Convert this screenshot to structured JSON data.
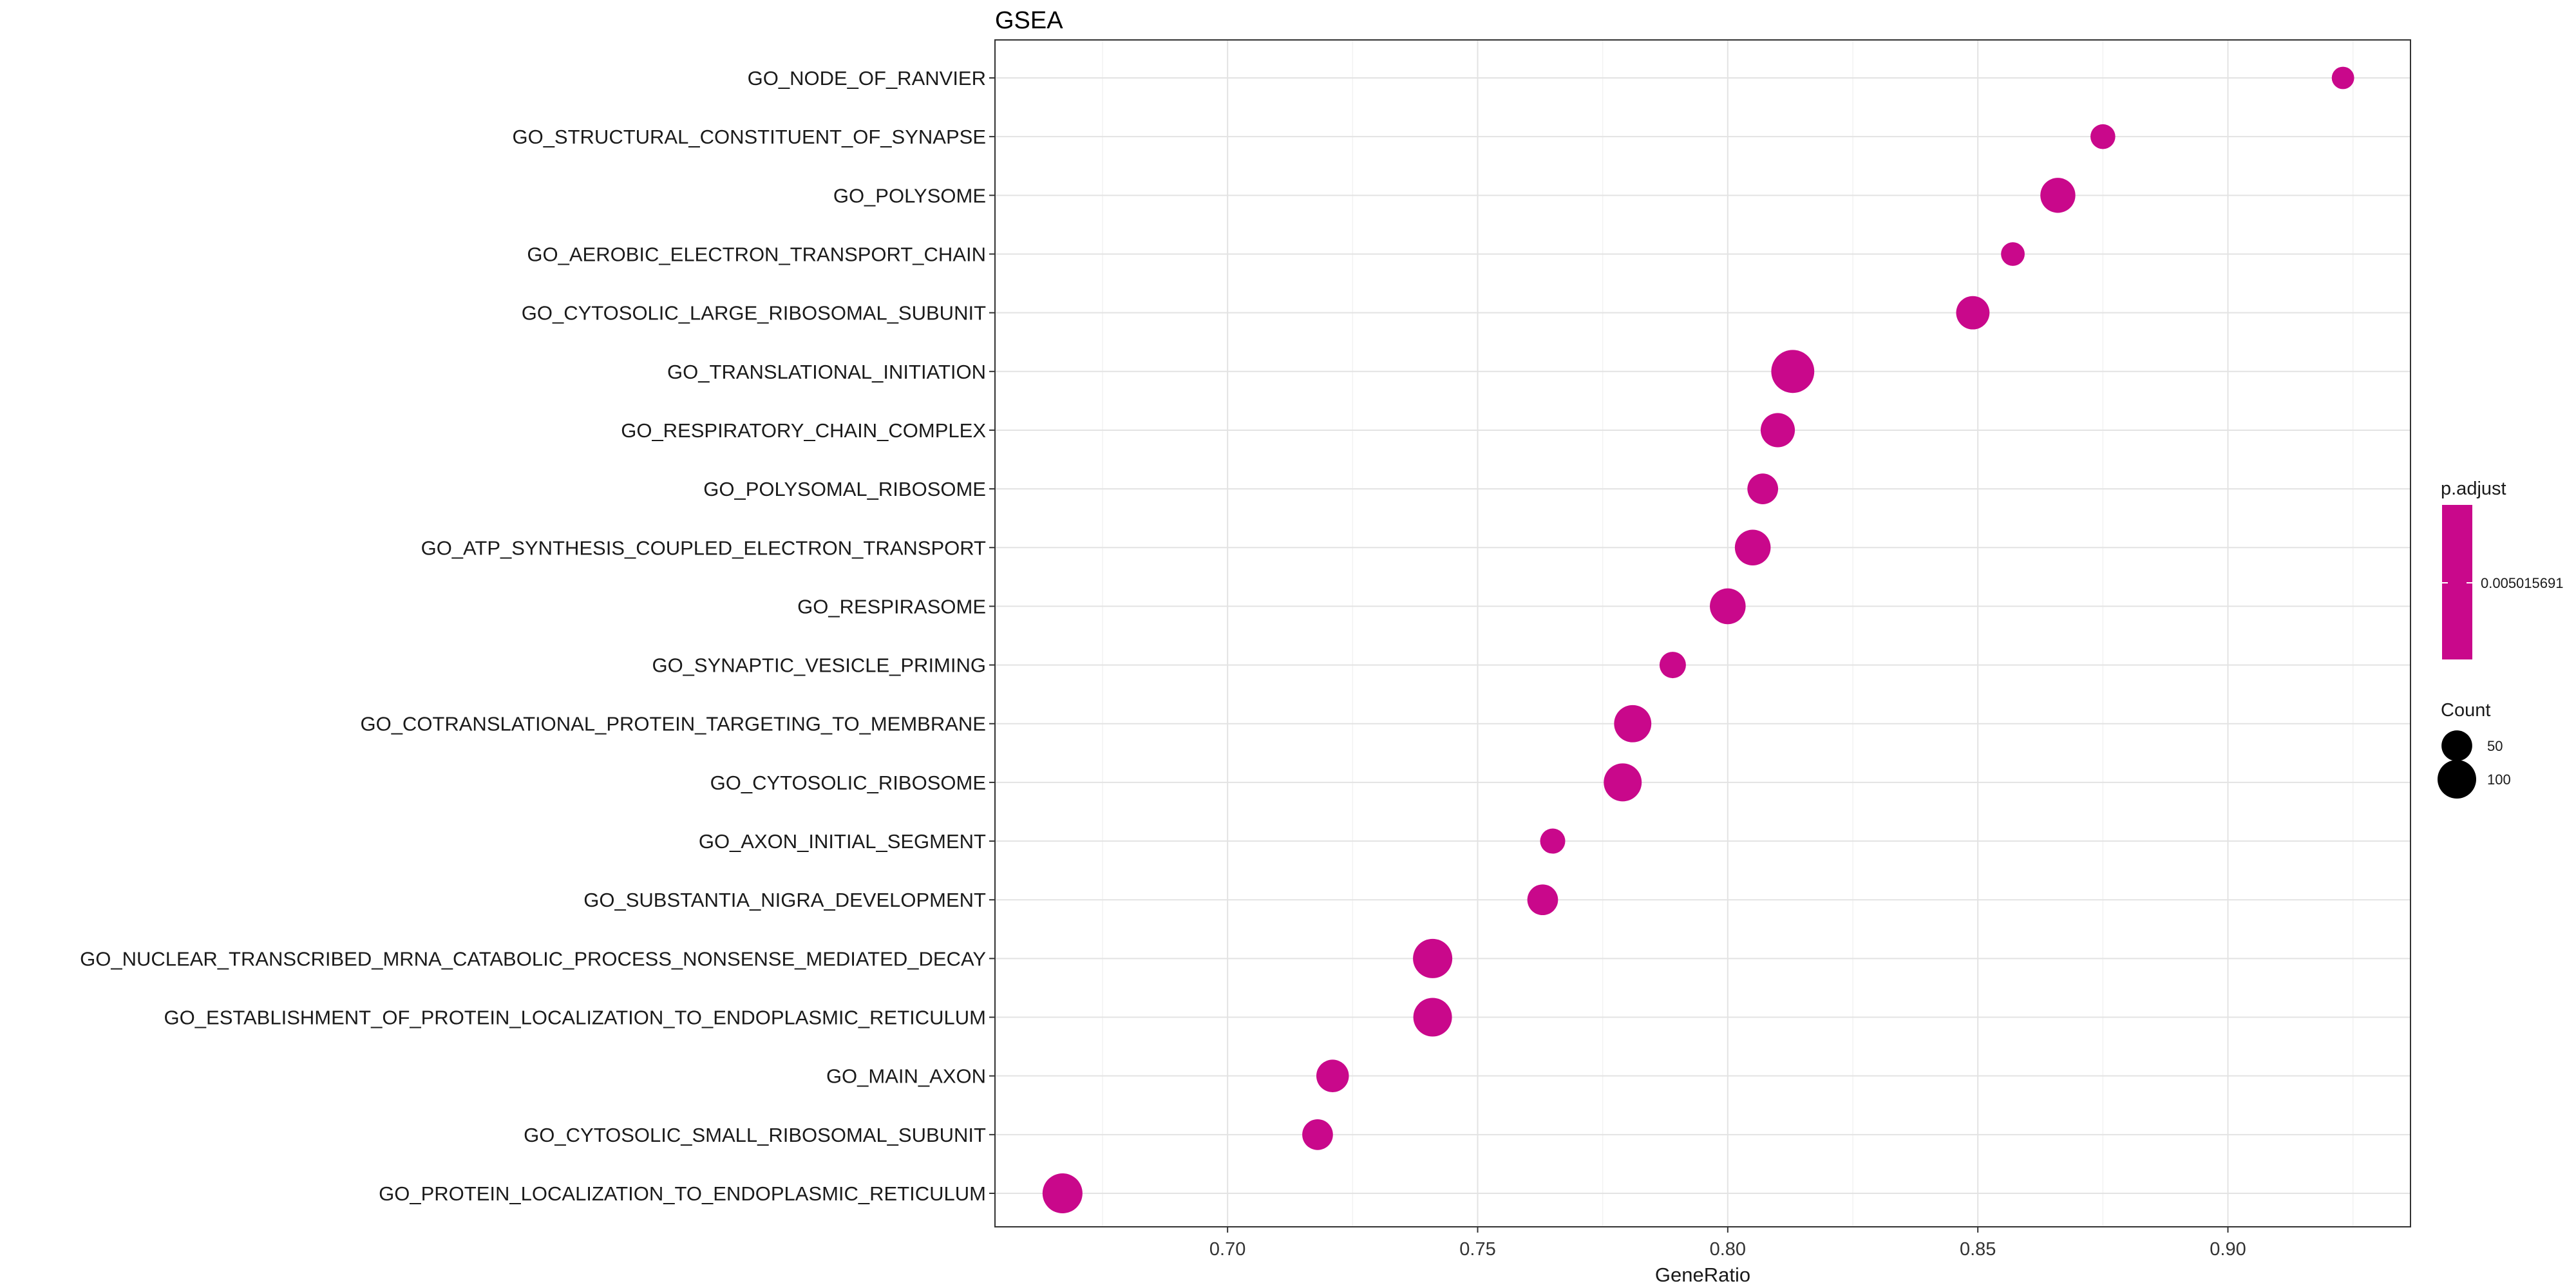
{
  "chart_data": {
    "type": "scatter",
    "title": "GSEA",
    "xlabel": "GeneRatio",
    "ylabel": "",
    "xlim": [
      0.6535,
      0.9365
    ],
    "xticks": [
      "0.70",
      "0.75",
      "0.80",
      "0.85",
      "0.90"
    ],
    "grid": true,
    "color": "#c9088b",
    "points": [
      {
        "term": "GO_NODE_OF_RANVIER",
        "x": 0.923,
        "count": 16
      },
      {
        "term": "GO_STRUCTURAL_CONSTITUENT_OF_SYNAPSE",
        "x": 0.875,
        "count": 24
      },
      {
        "term": "GO_POLYSOME",
        "x": 0.866,
        "count": 75
      },
      {
        "term": "GO_AEROBIC_ELECTRON_TRANSPORT_CHAIN",
        "x": 0.857,
        "count": 20
      },
      {
        "term": "GO_CYTOSOLIC_LARGE_RIBOSOMAL_SUBUNIT",
        "x": 0.849,
        "count": 65
      },
      {
        "term": "GO_TRANSLATIONAL_INITIATION",
        "x": 0.813,
        "count": 135
      },
      {
        "term": "GO_RESPIRATORY_CHAIN_COMPLEX",
        "x": 0.81,
        "count": 70
      },
      {
        "term": "GO_POLYSOMAL_RIBOSOME",
        "x": 0.807,
        "count": 50
      },
      {
        "term": "GO_ATP_SYNTHESIS_COUPLED_ELECTRON_TRANSPORT",
        "x": 0.805,
        "count": 80
      },
      {
        "term": "GO_RESPIRASOME",
        "x": 0.8,
        "count": 80
      },
      {
        "term": "GO_SYNAPTIC_VESICLE_PRIMING",
        "x": 0.789,
        "count": 30
      },
      {
        "term": "GO_COTRANSLATIONAL_PROTEIN_TARGETING_TO_MEMBRANE",
        "x": 0.781,
        "count": 90
      },
      {
        "term": "GO_CYTOSOLIC_RIBOSOME",
        "x": 0.779,
        "count": 95
      },
      {
        "term": "GO_AXON_INITIAL_SEGMENT",
        "x": 0.765,
        "count": 25
      },
      {
        "term": "GO_SUBSTANTIA_NIGRA_DEVELOPMENT",
        "x": 0.763,
        "count": 50
      },
      {
        "term": "GO_NUCLEAR_TRANSCRIBED_MRNA_CATABOLIC_PROCESS_NONSENSE_MEDIATED_DECAY",
        "x": 0.741,
        "count": 105
      },
      {
        "term": "GO_ESTABLISHMENT_OF_PROTEIN_LOCALIZATION_TO_ENDOPLASMIC_RETICULUM",
        "x": 0.741,
        "count": 100
      },
      {
        "term": "GO_MAIN_AXON",
        "x": 0.721,
        "count": 60
      },
      {
        "term": "GO_CYTOSOLIC_SMALL_RIBOSOMAL_SUBUNIT",
        "x": 0.718,
        "count": 50
      },
      {
        "term": "GO_PROTEIN_LOCALIZATION_TO_ENDOPLASMIC_RETICULUM",
        "x": 0.667,
        "count": 110
      }
    ],
    "legend": {
      "placement": "right",
      "color_title": "p.adjust",
      "color_label": "0.005015691",
      "size_title": "Count",
      "size_entries": [
        {
          "label": "50",
          "count": 50
        },
        {
          "label": "100",
          "count": 100
        }
      ]
    }
  }
}
